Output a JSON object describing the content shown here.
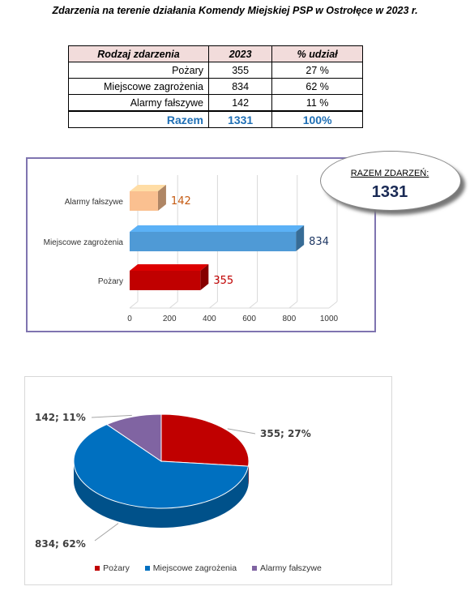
{
  "page_title": "Zdarzenia na terenie działania Komendy Miejskiej PSP w Ostrołęce w 2023 r.",
  "table": {
    "headers": [
      "Rodzaj zdarzenia",
      "2023",
      "% udział"
    ],
    "rows": [
      [
        "Pożary",
        "355",
        "27 %"
      ],
      [
        "Miejscowe zagrożenia",
        "834",
        "62 %"
      ],
      [
        "Alarmy fałszywe",
        "142",
        "11 %"
      ]
    ],
    "total": [
      "Razem",
      "1331",
      "100%"
    ]
  },
  "total_box": {
    "label": "RAZEM ZDARZEŃ:",
    "value": "1331"
  },
  "colors": {
    "pozary": "#c00000",
    "miejscowe": "#0070c0",
    "alarmy": "#8064a2",
    "alarmy_bar": "#fac090",
    "miejscowe_bar": "#4f9ad6"
  },
  "chart_data": [
    {
      "type": "bar",
      "orientation": "horizontal",
      "categories": [
        "Pożary",
        "Miejscowe zagrożenia",
        "Alarmy fałszywe"
      ],
      "values": [
        355,
        834,
        142
      ],
      "data_labels": [
        "355",
        "834",
        "142"
      ],
      "xlim": [
        0,
        1000
      ],
      "xticks": [
        "0",
        "200",
        "400",
        "600",
        "800",
        "1000"
      ],
      "grid": true
    },
    {
      "type": "pie",
      "labels": [
        "Pożary",
        "Miejscowe zagrożenia",
        "Alarmy fałszywe"
      ],
      "values": [
        355,
        834,
        142
      ],
      "percentages": [
        27,
        62,
        11
      ],
      "data_labels": [
        "355; 27%",
        "834; 62%",
        "142; 11%"
      ],
      "legend": "bottom"
    }
  ]
}
